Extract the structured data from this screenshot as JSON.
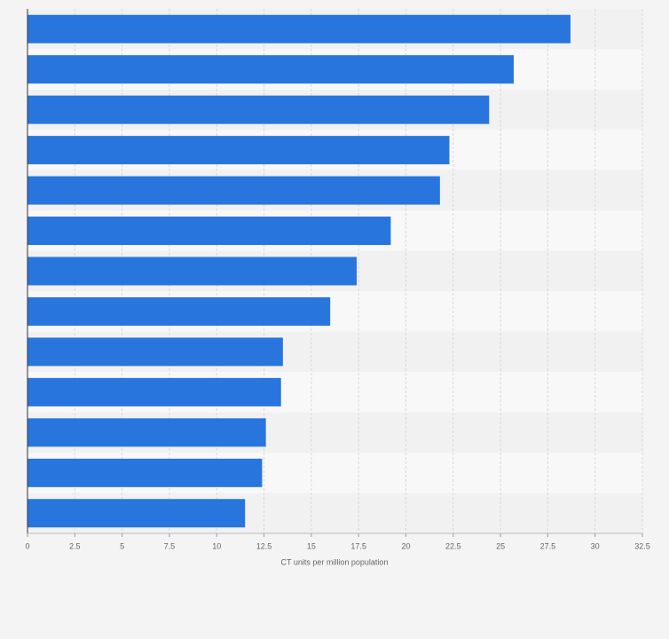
{
  "chart_data": {
    "type": "bar",
    "orientation": "horizontal",
    "x_label": "CT units per million population",
    "categories": [
      null,
      null,
      null,
      null,
      null,
      null,
      null,
      null,
      null,
      null,
      null,
      null,
      null
    ],
    "values": [
      28.7,
      25.7,
      24.4,
      22.3,
      21.8,
      19.2,
      17.4,
      16.0,
      13.5,
      13.4,
      12.6,
      12.4,
      11.5
    ],
    "color": "#2876dd",
    "xlim": [
      0,
      32.5
    ],
    "xticks": [
      0,
      2.5,
      5,
      7.5,
      10,
      12.5,
      15,
      17.5,
      20,
      22.5,
      25,
      27.5,
      30,
      32.5
    ],
    "grid": true
  }
}
